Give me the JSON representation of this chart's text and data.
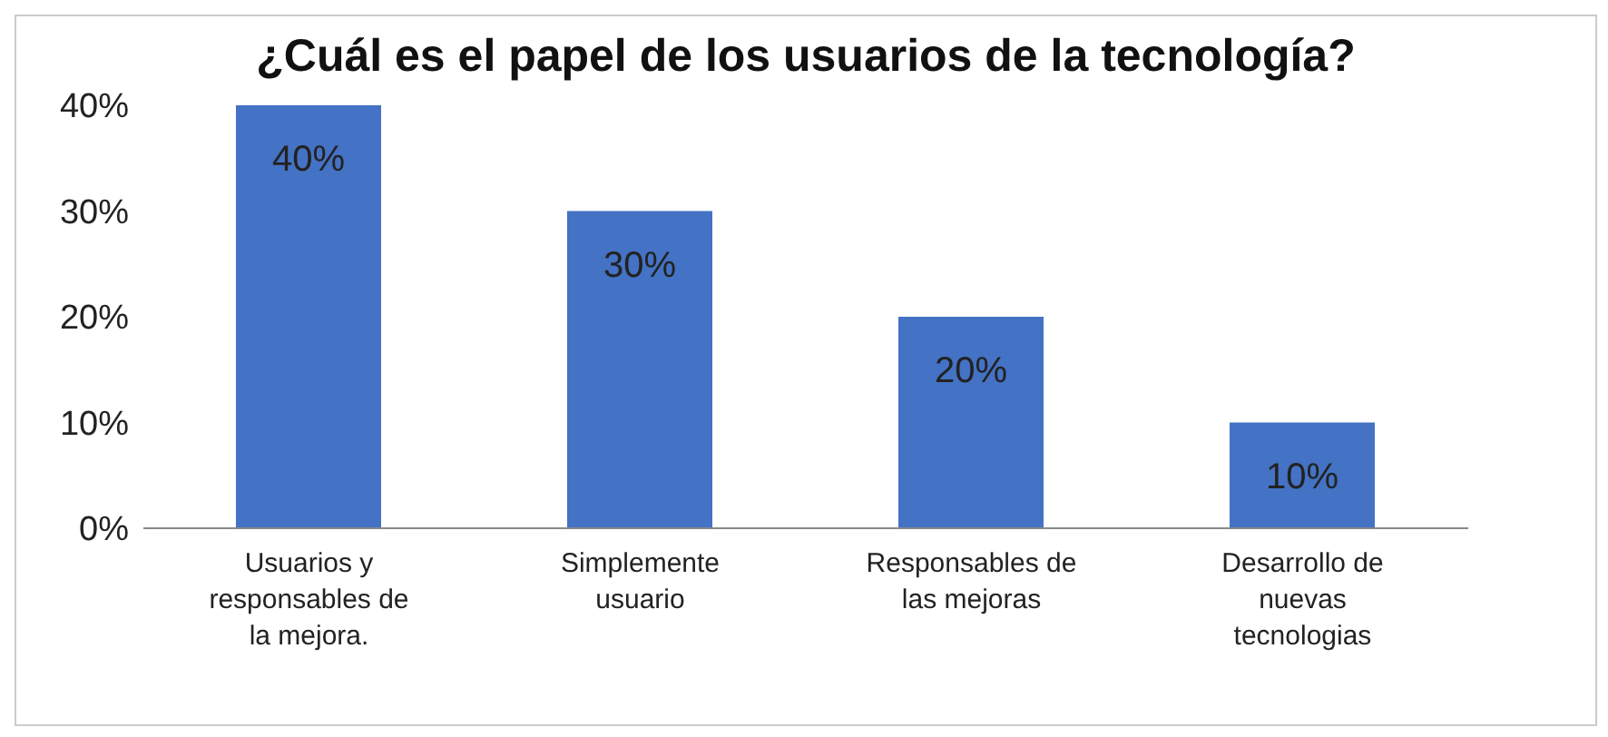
{
  "chart_data": {
    "type": "bar",
    "title": "¿Cuál es el papel de los usuarios de la tecnología?",
    "categories": [
      "Usuarios y responsables de la mejora.",
      "Simplemente usuario",
      "Responsables de las mejoras",
      "Desarrollo de nuevas tecnologias"
    ],
    "values": [
      40,
      30,
      20,
      10
    ],
    "color": "#4472c4",
    "value_labels": [
      "40%",
      "30%",
      "20%",
      "10%"
    ],
    "ylim": [
      0,
      40
    ],
    "yticks": [
      {
        "value": 0,
        "label": "0%"
      },
      {
        "value": 10,
        "label": "10%"
      },
      {
        "value": 20,
        "label": "20%"
      },
      {
        "value": 30,
        "label": "30%"
      },
      {
        "value": 40,
        "label": "40%"
      }
    ],
    "grid": false,
    "legend": false
  }
}
